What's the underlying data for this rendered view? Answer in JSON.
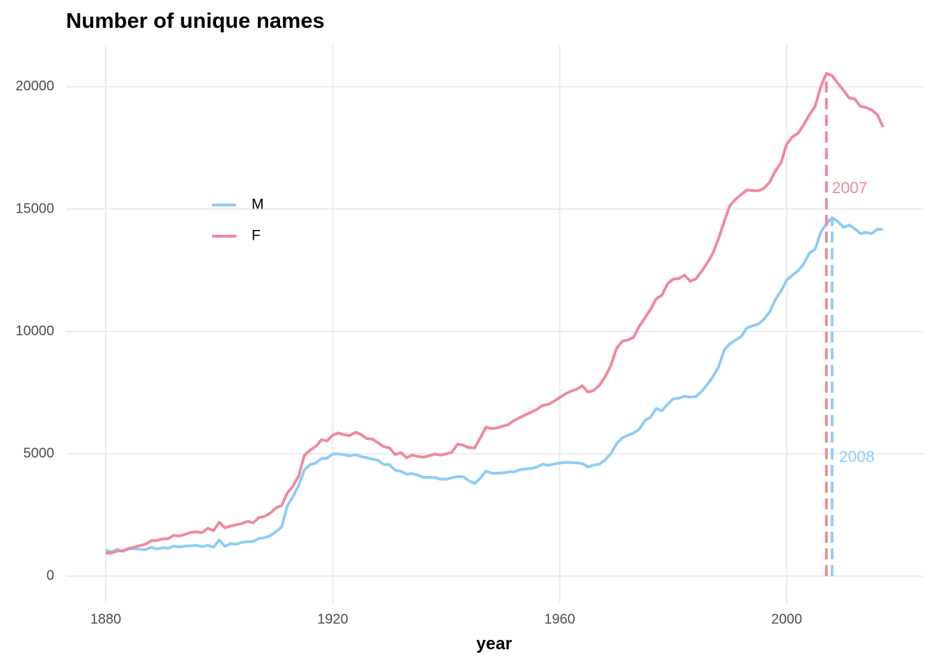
{
  "chart_data": {
    "type": "line",
    "title": "Number of unique names",
    "x_label": "year",
    "x": [
      1880,
      1881,
      1882,
      1883,
      1884,
      1885,
      1886,
      1887,
      1888,
      1889,
      1890,
      1891,
      1892,
      1893,
      1894,
      1895,
      1896,
      1897,
      1898,
      1899,
      1900,
      1901,
      1902,
      1903,
      1904,
      1905,
      1906,
      1907,
      1908,
      1909,
      1910,
      1911,
      1912,
      1913,
      1914,
      1915,
      1916,
      1917,
      1918,
      1919,
      1920,
      1921,
      1922,
      1923,
      1924,
      1925,
      1926,
      1927,
      1928,
      1929,
      1930,
      1931,
      1932,
      1933,
      1934,
      1935,
      1936,
      1937,
      1938,
      1939,
      1940,
      1941,
      1942,
      1943,
      1944,
      1945,
      1946,
      1947,
      1948,
      1949,
      1950,
      1951,
      1952,
      1953,
      1954,
      1955,
      1956,
      1957,
      1958,
      1959,
      1960,
      1961,
      1962,
      1963,
      1964,
      1965,
      1966,
      1967,
      1968,
      1969,
      1970,
      1971,
      1972,
      1973,
      1974,
      1975,
      1976,
      1977,
      1978,
      1979,
      1980,
      1981,
      1982,
      1983,
      1984,
      1985,
      1986,
      1987,
      1988,
      1989,
      1990,
      1991,
      1992,
      1993,
      1994,
      1995,
      1996,
      1997,
      1998,
      1999,
      2000,
      2001,
      2002,
      2003,
      2004,
      2005,
      2006,
      2007,
      2008,
      2009,
      2010,
      2011,
      2012,
      2013,
      2014,
      2015,
      2016,
      2017
    ],
    "series": [
      {
        "name": "M",
        "color": "#8ccdf7",
        "values": [
          1060,
          990,
          1100,
          1010,
          1110,
          1120,
          1100,
          1080,
          1180,
          1110,
          1160,
          1140,
          1230,
          1190,
          1230,
          1240,
          1260,
          1210,
          1260,
          1180,
          1480,
          1220,
          1330,
          1300,
          1380,
          1410,
          1420,
          1540,
          1570,
          1650,
          1820,
          2010,
          2880,
          3250,
          3710,
          4340,
          4560,
          4620,
          4800,
          4820,
          4990,
          5000,
          4960,
          4920,
          4960,
          4890,
          4840,
          4780,
          4730,
          4560,
          4560,
          4330,
          4290,
          4170,
          4190,
          4130,
          4040,
          4040,
          4030,
          3960,
          3960,
          4020,
          4070,
          4060,
          3900,
          3790,
          4000,
          4290,
          4210,
          4210,
          4220,
          4260,
          4270,
          4350,
          4380,
          4400,
          4460,
          4580,
          4530,
          4580,
          4620,
          4650,
          4640,
          4630,
          4600,
          4460,
          4540,
          4580,
          4750,
          5000,
          5400,
          5650,
          5750,
          5850,
          6000,
          6350,
          6500,
          6850,
          6760,
          7020,
          7250,
          7270,
          7350,
          7320,
          7340,
          7550,
          7830,
          8150,
          8550,
          9250,
          9500,
          9650,
          9800,
          10150,
          10230,
          10300,
          10500,
          10800,
          11300,
          11650,
          12100,
          12300,
          12480,
          12760,
          13200,
          13350,
          14050,
          14400,
          14650,
          14500,
          14250,
          14350,
          14200,
          14000,
          14050,
          14000,
          14180,
          14170
        ]
      },
      {
        "name": "F",
        "color": "#f0899c",
        "values": [
          940,
          940,
          1030,
          1040,
          1130,
          1180,
          1250,
          1300,
          1450,
          1460,
          1520,
          1530,
          1670,
          1640,
          1710,
          1790,
          1810,
          1780,
          1960,
          1860,
          2200,
          1980,
          2050,
          2100,
          2150,
          2240,
          2180,
          2400,
          2440,
          2580,
          2790,
          2890,
          3400,
          3680,
          4100,
          4930,
          5150,
          5300,
          5570,
          5530,
          5760,
          5850,
          5780,
          5740,
          5880,
          5790,
          5620,
          5600,
          5450,
          5290,
          5240,
          4970,
          5050,
          4840,
          4950,
          4890,
          4860,
          4920,
          4990,
          4950,
          5000,
          5060,
          5400,
          5350,
          5250,
          5240,
          5650,
          6090,
          6030,
          6060,
          6130,
          6200,
          6370,
          6480,
          6600,
          6700,
          6820,
          6980,
          7020,
          7150,
          7300,
          7450,
          7560,
          7640,
          7780,
          7520,
          7590,
          7800,
          8150,
          8600,
          9300,
          9600,
          9650,
          9760,
          10200,
          10550,
          10900,
          11330,
          11480,
          11950,
          12140,
          12160,
          12300,
          12050,
          12150,
          12450,
          12800,
          13200,
          13800,
          14500,
          15150,
          15400,
          15600,
          15780,
          15760,
          15750,
          15850,
          16100,
          16550,
          16900,
          17650,
          17950,
          18100,
          18450,
          18850,
          19200,
          20000,
          20550,
          20450,
          20150,
          19850,
          19550,
          19500,
          19200,
          19150,
          19050,
          18850,
          18350
        ]
      }
    ],
    "annotations": [
      {
        "x": 2007,
        "y": 20550,
        "label": "2007",
        "color": "#f0899c"
      },
      {
        "x": 2008,
        "y": 14650,
        "label": "2008",
        "color": "#8ccdf7"
      }
    ],
    "xlim": [
      1873,
      2024
    ],
    "ylim": [
      -1100,
      21700
    ],
    "xticks": [
      1880,
      1920,
      1960,
      2000
    ],
    "yticks": [
      0,
      5000,
      10000,
      15000,
      20000
    ],
    "grid": true,
    "legend": "left"
  }
}
